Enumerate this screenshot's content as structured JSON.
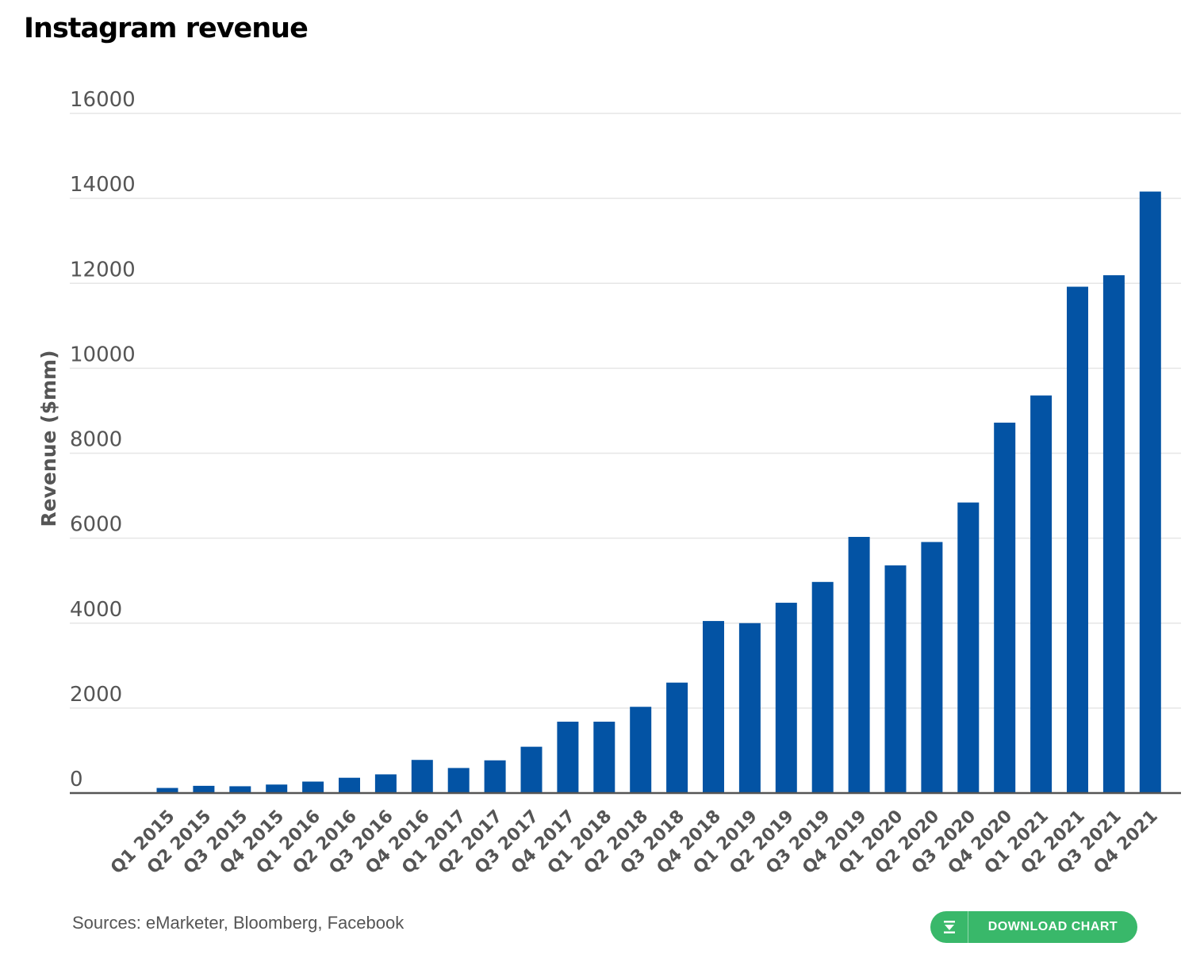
{
  "title": "Instagram revenue",
  "source": "Sources: eMarketer, Bloomberg, Facebook",
  "download_button": {
    "label": "DOWNLOAD CHART",
    "icon": "download-icon"
  },
  "colors": {
    "bar": "#0353a4",
    "gridline": "#e6e6e6",
    "axis": "#555555",
    "tick_text": "#555555",
    "button": "#39b86a"
  },
  "chart_data": {
    "type": "bar",
    "title": "Instagram revenue",
    "xlabel": "",
    "ylabel": "Revenue ($mm)",
    "ylim": [
      0,
      16000
    ],
    "yticks": [
      0,
      2000,
      4000,
      6000,
      8000,
      10000,
      12000,
      14000,
      16000
    ],
    "grid": true,
    "categories": [
      "Q1 2015",
      "Q2 2015",
      "Q3 2015",
      "Q4 2015",
      "Q1 2016",
      "Q2 2016",
      "Q3 2016",
      "Q4 2016",
      "Q1 2017",
      "Q2 2017",
      "Q3 2017",
      "Q4 2017",
      "Q1 2018",
      "Q2 2018",
      "Q3 2018",
      "Q4 2018",
      "Q1 2019",
      "Q2 2019",
      "Q3 2019",
      "Q4 2019",
      "Q1 2020",
      "Q2 2020",
      "Q3 2020",
      "Q4 2020",
      "Q1 2021",
      "Q2 2021",
      "Q3 2021",
      "Q4 2021"
    ],
    "values": [
      120,
      170,
      160,
      200,
      270,
      360,
      440,
      780,
      590,
      770,
      1090,
      1680,
      1680,
      2030,
      2600,
      4050,
      4000,
      4480,
      4970,
      6030,
      5360,
      5910,
      6840,
      8720,
      9360,
      11920,
      12190,
      14160
    ]
  }
}
